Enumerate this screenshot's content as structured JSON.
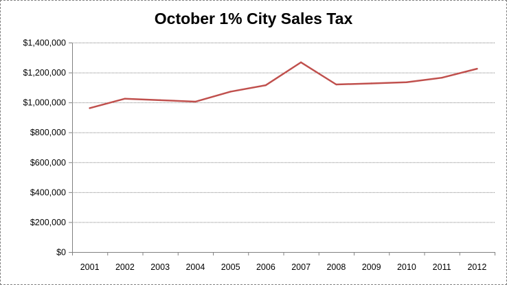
{
  "chart_data": {
    "type": "line",
    "title": "October 1% City Sales Tax",
    "xlabel": "",
    "ylabel": "",
    "categories": [
      "2001",
      "2002",
      "2003",
      "2004",
      "2005",
      "2006",
      "2007",
      "2008",
      "2009",
      "2010",
      "2011",
      "2012"
    ],
    "series": [
      {
        "values": [
          962000,
          1025000,
          1015000,
          1005000,
          1072000,
          1115000,
          1268000,
          1120000,
          1127000,
          1135000,
          1165000,
          1225000
        ]
      }
    ],
    "ylim": [
      0,
      1400000
    ],
    "yticks": [
      0,
      200000,
      400000,
      600000,
      800000,
      1000000,
      1200000,
      1400000
    ],
    "ytick_labels": [
      "$0",
      "$200,000",
      "$400,000",
      "$600,000",
      "$800,000",
      "$1,000,000",
      "$1,200,000",
      "$1,400,000"
    ],
    "grid": "horizontal-dotted",
    "legend": "none",
    "line_color": "#c0504d"
  }
}
